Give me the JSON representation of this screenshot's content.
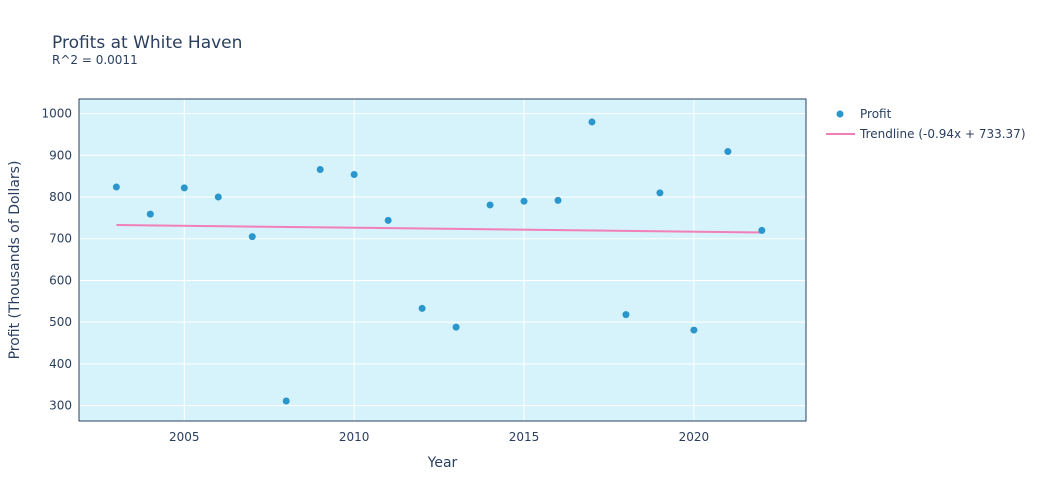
{
  "chart_data": {
    "type": "scatter",
    "title": "Profits at White Haven",
    "subtitle": "R^2 = 0.0011",
    "xlabel": "Year",
    "ylabel": "Profit (Thousands of Dollars)",
    "xlim": [
      2001.9,
      2023.3
    ],
    "ylim": [
      263,
      1035
    ],
    "xticks": [
      2005,
      2010,
      2015,
      2020
    ],
    "yticks": [
      300,
      400,
      500,
      600,
      700,
      800,
      900,
      1000
    ],
    "grid": true,
    "legend_position": "right",
    "series": [
      {
        "name": "Profit",
        "mode": "markers",
        "color": "#2b96cc",
        "x": [
          2003,
          2004,
          2005,
          2006,
          2007,
          2008,
          2009,
          2010,
          2011,
          2012,
          2013,
          2014,
          2015,
          2016,
          2017,
          2018,
          2019,
          2020,
          2021,
          2022
        ],
        "y": [
          824,
          759,
          822,
          800,
          705,
          311,
          866,
          854,
          744,
          533,
          488,
          781,
          790,
          792,
          980,
          518,
          810,
          481,
          909,
          720
        ]
      },
      {
        "name": "Trendline (-0.94x + 733.37)",
        "mode": "line",
        "color": "#f27fb9",
        "x": [
          2003,
          2022
        ],
        "y": [
          733.0,
          715.0
        ]
      }
    ],
    "colors": {
      "plot_background": "#d6f3fb",
      "grid": "#ffffff",
      "text": "#2a3f5f"
    }
  }
}
